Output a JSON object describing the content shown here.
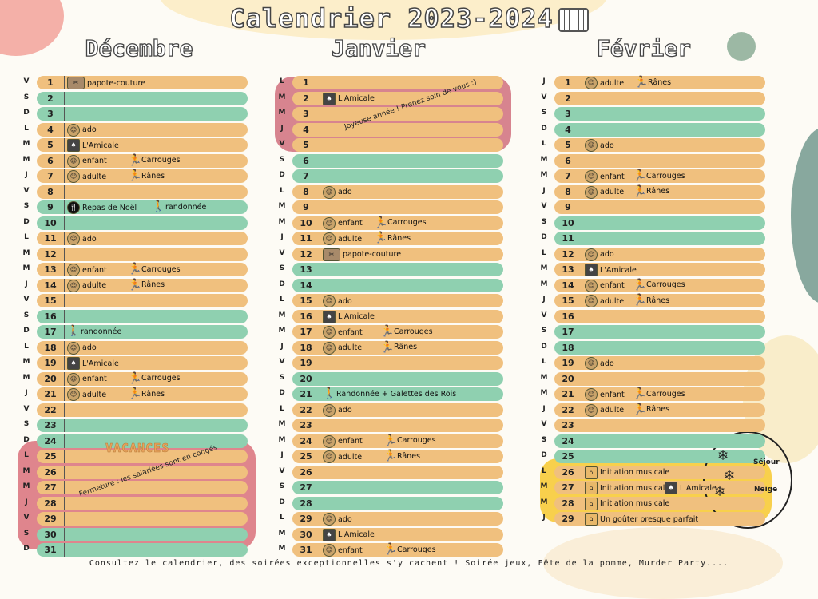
{
  "title": "Calendrier 2023-2024",
  "footer": "Consultez le calendrier, des soirées exceptionnelles s'y cachent ! Soirée jeux, Fête de la pomme, Murder Party....",
  "colors": {
    "weekday": "#f0c07e",
    "weekend": "#8fd0b0",
    "vacation": "#d9707a",
    "joy": "#d06e7c",
    "music": "#f8d04c"
  },
  "notes": {
    "vacances": "VACANCES",
    "fermeture": "Fermeture : les salariées sont en congés",
    "joyeuse": "Joyeuse année ! Prenez soin de vous :)",
    "sejour": "Séjour",
    "neige": "Neige"
  },
  "months": [
    {
      "name": "Décembre",
      "days": [
        {
          "d": "V",
          "n": "1",
          "ev": [
            {
              "icon": "sewing-icon",
              "label": "papote-couture"
            }
          ]
        },
        {
          "d": "S",
          "n": "2",
          "we": true,
          "ev": []
        },
        {
          "d": "D",
          "n": "3",
          "we": true,
          "ev": []
        },
        {
          "d": "L",
          "n": "4",
          "ev": [
            {
              "icon": "group-icon",
              "label": "ado"
            }
          ]
        },
        {
          "d": "M",
          "n": "5",
          "ev": [
            {
              "icon": "cards-icon",
              "label": "L'Amicale"
            }
          ]
        },
        {
          "d": "M",
          "n": "6",
          "ev": [
            {
              "icon": "group-icon",
              "label": "enfant"
            },
            {
              "icon": "runner-icon",
              "label": "Carrouges",
              "off": 76
            }
          ]
        },
        {
          "d": "J",
          "n": "7",
          "ev": [
            {
              "icon": "group-icon",
              "label": "adulte"
            },
            {
              "icon": "runner-icon",
              "label": "Rânes",
              "off": 76
            }
          ]
        },
        {
          "d": "V",
          "n": "8",
          "ev": []
        },
        {
          "d": "S",
          "n": "9",
          "we": true,
          "ev": [
            {
              "icon": "fork-icon",
              "label": "Repas de Noël"
            },
            {
              "icon": "hiker-icon",
              "label": "randonnée",
              "off": 106
            }
          ]
        },
        {
          "d": "D",
          "n": "10",
          "we": true,
          "ev": []
        },
        {
          "d": "L",
          "n": "11",
          "ev": [
            {
              "icon": "group-icon",
              "label": "ado"
            }
          ]
        },
        {
          "d": "M",
          "n": "12",
          "ev": []
        },
        {
          "d": "M",
          "n": "13",
          "ev": [
            {
              "icon": "group-icon",
              "label": "enfant"
            },
            {
              "icon": "runner-icon",
              "label": "Carrouges",
              "off": 76
            }
          ]
        },
        {
          "d": "J",
          "n": "14",
          "ev": [
            {
              "icon": "group-icon",
              "label": "adulte"
            },
            {
              "icon": "runner-icon",
              "label": "Rânes",
              "off": 76
            }
          ]
        },
        {
          "d": "V",
          "n": "15",
          "ev": []
        },
        {
          "d": "S",
          "n": "16",
          "we": true,
          "ev": []
        },
        {
          "d": "D",
          "n": "17",
          "we": true,
          "ev": [
            {
              "icon": "hiker-icon",
              "label": "randonnée"
            }
          ]
        },
        {
          "d": "L",
          "n": "18",
          "ev": [
            {
              "icon": "group-icon",
              "label": "ado"
            }
          ]
        },
        {
          "d": "M",
          "n": "19",
          "ev": [
            {
              "icon": "cards-icon",
              "label": "L'Amicale"
            }
          ]
        },
        {
          "d": "M",
          "n": "20",
          "ev": [
            {
              "icon": "group-icon",
              "label": "enfant"
            },
            {
              "icon": "runner-icon",
              "label": "Carrouges",
              "off": 76
            }
          ]
        },
        {
          "d": "J",
          "n": "21",
          "ev": [
            {
              "icon": "group-icon",
              "label": "adulte"
            },
            {
              "icon": "runner-icon",
              "label": "Rânes",
              "off": 76
            }
          ]
        },
        {
          "d": "V",
          "n": "22",
          "ev": []
        },
        {
          "d": "S",
          "n": "23",
          "we": true,
          "ev": []
        },
        {
          "d": "D",
          "n": "24",
          "we": true,
          "ev": []
        },
        {
          "d": "L",
          "n": "25",
          "ev": []
        },
        {
          "d": "M",
          "n": "26",
          "ev": []
        },
        {
          "d": "M",
          "n": "27",
          "ev": []
        },
        {
          "d": "J",
          "n": "28",
          "ev": []
        },
        {
          "d": "V",
          "n": "29",
          "ev": []
        },
        {
          "d": "S",
          "n": "30",
          "we": true,
          "ev": []
        },
        {
          "d": "D",
          "n": "31",
          "we": true,
          "ev": []
        }
      ]
    },
    {
      "name": "Janvier",
      "days": [
        {
          "d": "L",
          "n": "1",
          "ev": []
        },
        {
          "d": "M",
          "n": "2",
          "ev": [
            {
              "icon": "cards-icon",
              "label": "L'Amicale"
            }
          ]
        },
        {
          "d": "M",
          "n": "3",
          "ev": []
        },
        {
          "d": "J",
          "n": "4",
          "ev": []
        },
        {
          "d": "V",
          "n": "5",
          "ev": []
        },
        {
          "d": "S",
          "n": "6",
          "we": true,
          "ev": []
        },
        {
          "d": "D",
          "n": "7",
          "we": true,
          "ev": []
        },
        {
          "d": "L",
          "n": "8",
          "ev": [
            {
              "icon": "group-icon",
              "label": "ado"
            }
          ]
        },
        {
          "d": "M",
          "n": "9",
          "ev": []
        },
        {
          "d": "M",
          "n": "10",
          "ev": [
            {
              "icon": "group-icon",
              "label": "enfant"
            },
            {
              "icon": "runner-icon",
              "label": "Carrouges",
              "off": 64
            }
          ]
        },
        {
          "d": "J",
          "n": "11",
          "ev": [
            {
              "icon": "group-icon",
              "label": "adulte"
            },
            {
              "icon": "runner-icon",
              "label": "Rânes",
              "off": 64
            }
          ]
        },
        {
          "d": "V",
          "n": "12",
          "ev": [
            {
              "icon": "sewing-icon",
              "label": "papote-couture"
            }
          ]
        },
        {
          "d": "S",
          "n": "13",
          "we": true,
          "ev": []
        },
        {
          "d": "D",
          "n": "14",
          "we": true,
          "ev": []
        },
        {
          "d": "L",
          "n": "15",
          "ev": [
            {
              "icon": "group-icon",
              "label": "ado"
            }
          ]
        },
        {
          "d": "M",
          "n": "16",
          "ev": [
            {
              "icon": "cards-icon",
              "label": "L'Amicale"
            }
          ]
        },
        {
          "d": "M",
          "n": "17",
          "ev": [
            {
              "icon": "group-icon",
              "label": "enfant"
            },
            {
              "icon": "runner-icon",
              "label": "Carrouges",
              "off": 72
            }
          ]
        },
        {
          "d": "J",
          "n": "18",
          "ev": [
            {
              "icon": "group-icon",
              "label": "adulte"
            },
            {
              "icon": "runner-icon",
              "label": "Rânes",
              "off": 72
            }
          ]
        },
        {
          "d": "V",
          "n": "19",
          "ev": []
        },
        {
          "d": "S",
          "n": "20",
          "we": true,
          "ev": []
        },
        {
          "d": "D",
          "n": "21",
          "we": true,
          "ev": [
            {
              "icon": "hiker-icon",
              "label": "Randonnée + Galettes des Rois"
            }
          ]
        },
        {
          "d": "L",
          "n": "22",
          "ev": [
            {
              "icon": "group-icon",
              "label": "ado"
            }
          ]
        },
        {
          "d": "M",
          "n": "23",
          "ev": []
        },
        {
          "d": "M",
          "n": "24",
          "ev": [
            {
              "icon": "group-icon",
              "label": "enfant"
            },
            {
              "icon": "runner-icon",
              "label": "Carrouges",
              "off": 76
            }
          ]
        },
        {
          "d": "J",
          "n": "25",
          "ev": [
            {
              "icon": "group-icon",
              "label": "adulte"
            },
            {
              "icon": "runner-icon",
              "label": "Rânes",
              "off": 76
            }
          ]
        },
        {
          "d": "V",
          "n": "26",
          "ev": []
        },
        {
          "d": "S",
          "n": "27",
          "we": true,
          "ev": []
        },
        {
          "d": "D",
          "n": "28",
          "we": true,
          "ev": []
        },
        {
          "d": "L",
          "n": "29",
          "ev": [
            {
              "icon": "group-icon",
              "label": "ado"
            }
          ]
        },
        {
          "d": "M",
          "n": "30",
          "ev": [
            {
              "icon": "cards-icon",
              "label": "L'Amicale"
            }
          ]
        },
        {
          "d": "M",
          "n": "31",
          "ev": [
            {
              "icon": "group-icon",
              "label": "enfant"
            },
            {
              "icon": "runner-icon",
              "label": "Carrouges",
              "off": 76
            }
          ]
        }
      ]
    },
    {
      "name": "Février",
      "days": [
        {
          "d": "J",
          "n": "1",
          "ev": [
            {
              "icon": "group-icon",
              "label": "adulte"
            },
            {
              "icon": "runner-icon",
              "label": "Rânes",
              "off": 62
            }
          ]
        },
        {
          "d": "V",
          "n": "2",
          "ev": []
        },
        {
          "d": "S",
          "n": "3",
          "we": true,
          "ev": []
        },
        {
          "d": "D",
          "n": "4",
          "we": true,
          "ev": []
        },
        {
          "d": "L",
          "n": "5",
          "ev": [
            {
              "icon": "group-icon",
              "label": "ado"
            }
          ]
        },
        {
          "d": "M",
          "n": "6",
          "ev": []
        },
        {
          "d": "M",
          "n": "7",
          "ev": [
            {
              "icon": "group-icon",
              "label": "enfant"
            },
            {
              "icon": "runner-icon",
              "label": "Carrouges",
              "off": 60
            }
          ]
        },
        {
          "d": "J",
          "n": "8",
          "ev": [
            {
              "icon": "group-icon",
              "label": "adulte"
            },
            {
              "icon": "runner-icon",
              "label": "Rânes",
              "off": 60
            }
          ]
        },
        {
          "d": "V",
          "n": "9",
          "ev": []
        },
        {
          "d": "S",
          "n": "10",
          "we": true,
          "ev": []
        },
        {
          "d": "D",
          "n": "11",
          "we": true,
          "ev": []
        },
        {
          "d": "L",
          "n": "12",
          "ev": [
            {
              "icon": "group-icon",
              "label": "ado"
            }
          ]
        },
        {
          "d": "M",
          "n": "13",
          "ev": [
            {
              "icon": "cards-icon",
              "label": "L'Amicale"
            }
          ]
        },
        {
          "d": "M",
          "n": "14",
          "ev": [
            {
              "icon": "group-icon",
              "label": "enfant"
            },
            {
              "icon": "runner-icon",
              "label": "Carrouges",
              "off": 60
            }
          ]
        },
        {
          "d": "J",
          "n": "15",
          "ev": [
            {
              "icon": "group-icon",
              "label": "adulte"
            },
            {
              "icon": "runner-icon",
              "label": "Rânes",
              "off": 60
            }
          ]
        },
        {
          "d": "V",
          "n": "16",
          "ev": []
        },
        {
          "d": "S",
          "n": "17",
          "we": true,
          "ev": []
        },
        {
          "d": "D",
          "n": "18",
          "we": true,
          "ev": []
        },
        {
          "d": "L",
          "n": "19",
          "ev": [
            {
              "icon": "group-icon",
              "label": "ado"
            }
          ]
        },
        {
          "d": "M",
          "n": "20",
          "ev": []
        },
        {
          "d": "M",
          "n": "21",
          "ev": [
            {
              "icon": "group-icon",
              "label": "enfant"
            },
            {
              "icon": "runner-icon",
              "label": "Carrouges",
              "off": 60
            }
          ]
        },
        {
          "d": "J",
          "n": "22",
          "ev": [
            {
              "icon": "group-icon",
              "label": "adulte"
            },
            {
              "icon": "runner-icon",
              "label": "Rânes",
              "off": 60
            }
          ]
        },
        {
          "d": "V",
          "n": "23",
          "ev": []
        },
        {
          "d": "S",
          "n": "24",
          "we": true,
          "ev": []
        },
        {
          "d": "D",
          "n": "25",
          "we": true,
          "ev": []
        },
        {
          "d": "L",
          "n": "26",
          "ev": [
            {
              "icon": "house-icon",
              "label": "Initiation musicale"
            }
          ]
        },
        {
          "d": "M",
          "n": "27",
          "ev": [
            {
              "icon": "house-icon",
              "label": "Initiation musicale"
            },
            {
              "icon": "cards-icon",
              "label": "L'Amicale",
              "off": 100
            }
          ]
        },
        {
          "d": "M",
          "n": "28",
          "ev": [
            {
              "icon": "house-icon",
              "label": "Initiation musicale"
            }
          ]
        },
        {
          "d": "J",
          "n": "29",
          "ev": [
            {
              "icon": "house-icon",
              "label": "Un goûter presque parfait"
            }
          ]
        }
      ]
    }
  ]
}
